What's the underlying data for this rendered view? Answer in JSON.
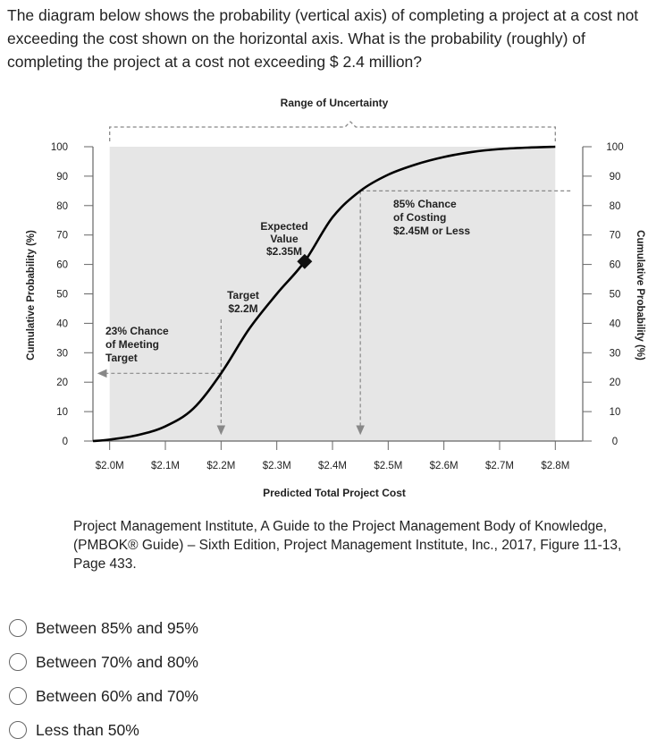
{
  "question": "The diagram below shows the probability (vertical axis) of completing a project at a cost not exceeding the cost shown on the horizontal axis. What is the probability (roughly) of completing the project at a cost not exceeding $ 2.4 million?",
  "citation": "Project Management Institute, A Guide to the Project Management Body of Knowledge, (PMBOK® Guide) – Sixth Edition, Project Management Institute, Inc., 2017, Figure 11-13, Page 433.",
  "options": [
    {
      "label": "Between 85% and 95%"
    },
    {
      "label": "Between 70% and 80%"
    },
    {
      "label": "Between 60% and 70%"
    },
    {
      "label": "Less than 50%"
    }
  ],
  "chart_data": {
    "type": "line",
    "title": "Range of Uncertainty",
    "xlabel": "Predicted Total Project Cost",
    "ylabel_left": "Cumulative Probability (%)",
    "ylabel_right": "Cumulative Probability (%)",
    "x_ticks": [
      "$2.0M",
      "$2.1M",
      "$2.2M",
      "$2.3M",
      "$2.4M",
      "$2.5M",
      "$2.6M",
      "$2.7M",
      "$2.8M"
    ],
    "x_tick_values": [
      2.0,
      2.1,
      2.2,
      2.3,
      2.4,
      2.5,
      2.6,
      2.7,
      2.8
    ],
    "y_ticks": [
      "0",
      "10",
      "20",
      "30",
      "40",
      "50",
      "60",
      "70",
      "80",
      "90",
      "100"
    ],
    "y_tick_values": [
      0,
      10,
      20,
      30,
      40,
      50,
      60,
      70,
      80,
      90,
      100
    ],
    "xlim": [
      1.97,
      2.83
    ],
    "ylim": [
      0,
      100
    ],
    "series": [
      {
        "x": [
          1.97,
          2.0,
          2.05,
          2.1,
          2.15,
          2.2,
          2.25,
          2.3,
          2.35,
          2.4,
          2.45,
          2.5,
          2.55,
          2.6,
          2.65,
          2.7,
          2.75,
          2.8
        ],
        "y": [
          0,
          0.5,
          2,
          5,
          11,
          23,
          38,
          50,
          61,
          76,
          85,
          90.5,
          94,
          96.5,
          98.2,
          99.2,
          99.7,
          100
        ]
      }
    ],
    "shaded_band": {
      "x_from": 2.0,
      "x_to": 2.8
    },
    "annotations": [
      {
        "lines": [
          "23% Chance",
          "of Meeting",
          "Target"
        ],
        "x": 2.2,
        "y": 23
      },
      {
        "lines": [
          "Target",
          "$2.2M"
        ],
        "x": 2.2,
        "y": 23
      },
      {
        "lines": [
          "Expected",
          "Value",
          "$2.35M"
        ],
        "x": 2.35,
        "y": 61
      },
      {
        "lines": [
          "85% Chance",
          "of Costing",
          "$2.45M or Less"
        ],
        "x": 2.45,
        "y": 85
      }
    ],
    "colors": {
      "curve": "#000000",
      "band": "#e6e6e6",
      "annotation_line": "#888888"
    }
  }
}
